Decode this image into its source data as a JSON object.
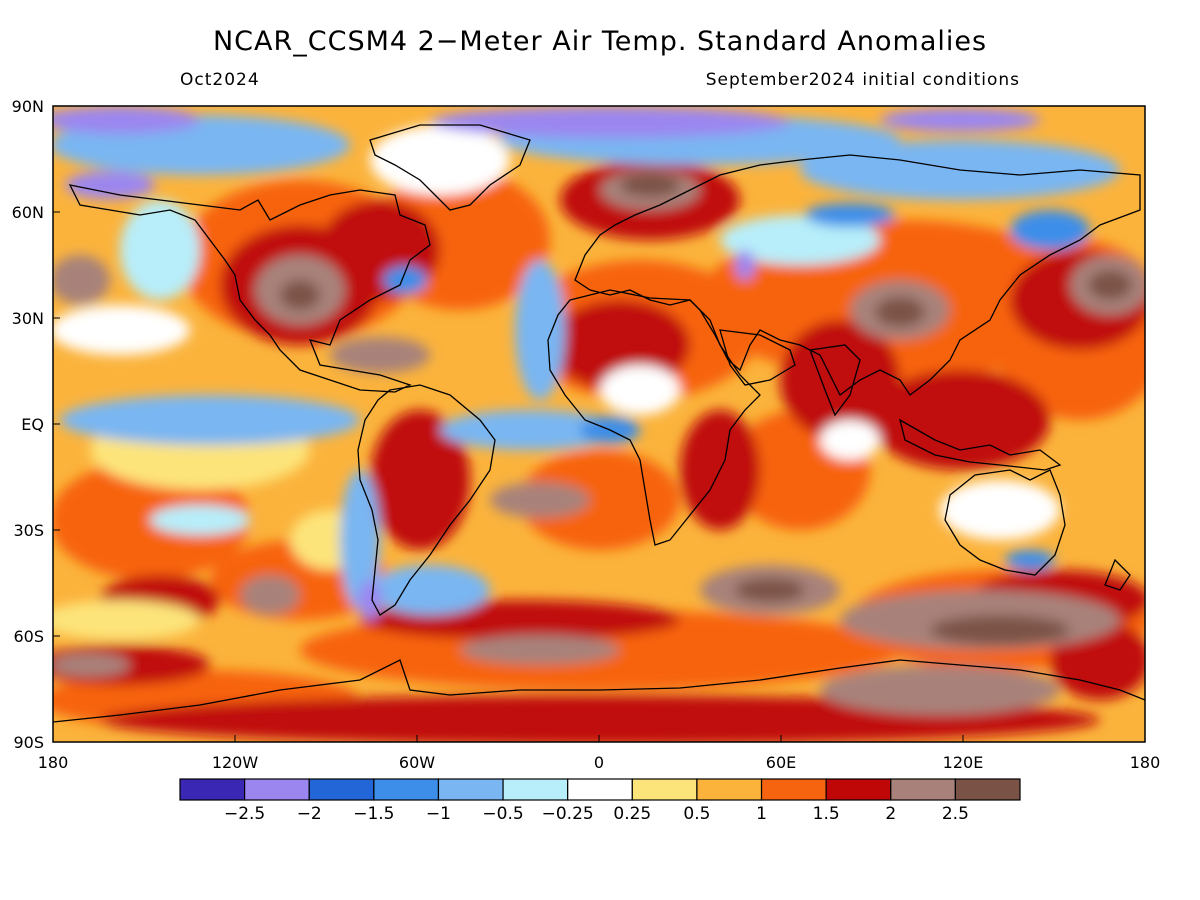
{
  "title": "NCAR_CCSM4 2−Meter Air Temp. Standard Anomalies",
  "subtitle_left": "Oct2024",
  "subtitle_right": "September2024 initial conditions",
  "lat_labels": [
    "90N",
    "60N",
    "30N",
    "EQ",
    "30S",
    "60S",
    "90S"
  ],
  "lon_labels": [
    "180",
    "120W",
    "60W",
    "0",
    "60E",
    "120E",
    "180"
  ],
  "legend": {
    "colors": [
      "#3a28b4",
      "#9b86f0",
      "#2366d8",
      "#3c8ee9",
      "#79b6f2",
      "#b7eefa",
      "#ffffff",
      "#fde47a",
      "#fbb33c",
      "#f7640f",
      "#c00707",
      "#a8827a",
      "#7b5346"
    ],
    "labels": [
      "−2.5",
      "−2",
      "−1.5",
      "−1",
      "−0.5",
      "−0.25",
      "0.25",
      "0.5",
      "1",
      "1.5",
      "2",
      "2.5"
    ]
  }
}
